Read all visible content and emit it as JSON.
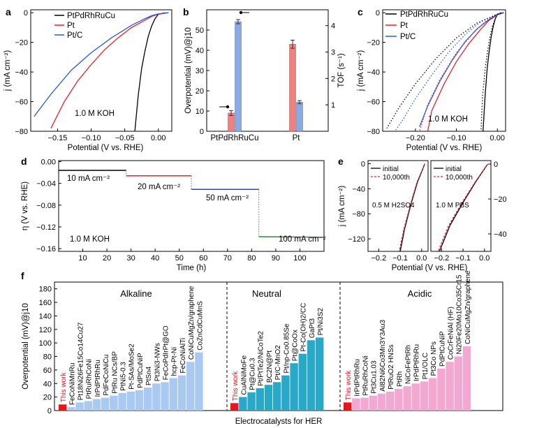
{
  "chart_data": [
    {
      "id": "a",
      "panel_label": "a",
      "type": "line",
      "xlabel": "Potential (V vs. RHE)",
      "ylabel": "j (mA cm⁻²)",
      "xlim": [
        -0.19,
        0.02
      ],
      "ylim": [
        -80,
        2
      ],
      "xticks": [
        "−0.15",
        "−0.10",
        "−0.05",
        "0.00"
      ],
      "yticks": [
        "−80",
        "−60",
        "−40",
        "−20",
        "0"
      ],
      "annotation": "1.0 M KOH",
      "series": [
        {
          "name": "PtPdRhRuCu",
          "color": "#000000",
          "x": [
            0.01,
            0.0,
            -0.005,
            -0.01,
            -0.015,
            -0.02,
            -0.025,
            -0.03,
            -0.035
          ],
          "y": [
            0,
            -1,
            -4,
            -9,
            -16,
            -26,
            -38,
            -56,
            -80
          ]
        },
        {
          "name": "Pt",
          "color": "#e8202a",
          "x": [
            0.015,
            0.0,
            -0.01,
            -0.02,
            -0.04,
            -0.06,
            -0.08,
            -0.1,
            -0.12,
            -0.14,
            -0.16
          ],
          "y": [
            0,
            -1,
            -2.5,
            -5,
            -10,
            -17,
            -25,
            -35,
            -46,
            -60,
            -78
          ]
        },
        {
          "name": "Pt/C",
          "color": "#2b59d6",
          "x": [
            0.015,
            0.0,
            -0.01,
            -0.02,
            -0.04,
            -0.07,
            -0.1,
            -0.13,
            -0.16,
            -0.185
          ],
          "y": [
            0,
            -0.8,
            -2,
            -4,
            -8.5,
            -17,
            -27,
            -39,
            -55,
            -70
          ]
        }
      ]
    },
    {
      "id": "b",
      "panel_label": "b",
      "type": "bar",
      "categories": [
        "PtPdRhRuCu",
        "Pt"
      ],
      "ylabel": "Overpotential (mV)@j10",
      "y2label": "TOF (s⁻¹)",
      "ylim": [
        0,
        60
      ],
      "y2lim": [
        0,
        4.6
      ],
      "yticks": [
        "0",
        "10",
        "20",
        "30",
        "40",
        "50"
      ],
      "y2ticks": [
        "1",
        "2",
        "3",
        "4"
      ],
      "series": [
        {
          "name": "Overpotential",
          "axis": "left",
          "color": "#f08080",
          "values": [
            9,
            43
          ],
          "errors": [
            1.2,
            2
          ]
        },
        {
          "name": "TOF",
          "axis": "right",
          "color": "#8aaae6",
          "values": [
            4.15,
            1.1
          ],
          "errors": [
            0.08,
            0.06
          ]
        }
      ]
    },
    {
      "id": "c",
      "panel_label": "c",
      "type": "line",
      "xlabel": "Potential (V vs. RHE)",
      "ylabel": "j (mA cm⁻²)",
      "xlim": [
        -0.28,
        0.02
      ],
      "ylim": [
        -80,
        2
      ],
      "xticks": [
        "−0.20",
        "−0.10",
        "0.00"
      ],
      "yticks": [
        "−80",
        "−60",
        "−40",
        "−20",
        "0"
      ],
      "annotation": "1.0 M KOH",
      "series": [
        {
          "name": "PtPdRhRuCu",
          "color": "#000000",
          "style": "solid",
          "x": [
            0.01,
            0.0,
            -0.005,
            -0.01,
            -0.015,
            -0.02,
            -0.025,
            -0.03,
            -0.035
          ],
          "y": [
            0,
            -1,
            -4,
            -9,
            -16,
            -26,
            -38,
            -56,
            -80
          ]
        },
        {
          "name": "PtPdRhRuCu (dotted)",
          "color": "#000000",
          "style": "dotted",
          "legend": false,
          "x": [
            0.01,
            0.0,
            -0.005,
            -0.012,
            -0.018,
            -0.024,
            -0.03,
            -0.036,
            -0.04
          ],
          "y": [
            0,
            -1,
            -4,
            -9,
            -16,
            -26,
            -38,
            -56,
            -80
          ]
        },
        {
          "name": "Pt",
          "color": "#e8202a",
          "style": "solid",
          "x": [
            0.015,
            0.0,
            -0.02,
            -0.04,
            -0.07,
            -0.1,
            -0.13,
            -0.16,
            -0.17
          ],
          "y": [
            0,
            -1.5,
            -5,
            -11,
            -21,
            -33,
            -48,
            -66,
            -80
          ]
        },
        {
          "name": "Pt (dotted)",
          "color": "#e8202a",
          "style": "dotted",
          "legend": false,
          "x": [
            0.015,
            0.0,
            -0.03,
            -0.06,
            -0.1,
            -0.14,
            -0.17,
            -0.19
          ],
          "y": [
            0,
            -1.5,
            -6,
            -14,
            -27,
            -45,
            -62,
            -80
          ]
        },
        {
          "name": "Pt/C",
          "color": "#2b59d6",
          "style": "solid",
          "x": [
            0.015,
            0.0,
            -0.02,
            -0.05,
            -0.08,
            -0.11,
            -0.14,
            -0.17,
            -0.19
          ],
          "y": [
            0,
            -1,
            -4.5,
            -11,
            -20,
            -32,
            -46,
            -63,
            -77
          ]
        },
        {
          "name": "Pt/C (dotted)",
          "color": "#2b59d6",
          "style": "dotted",
          "legend": false,
          "x": [
            0.015,
            0.0,
            -0.04,
            -0.08,
            -0.12,
            -0.16,
            -0.2,
            -0.23,
            -0.25
          ],
          "y": [
            0,
            -1,
            -6,
            -15,
            -27,
            -42,
            -58,
            -72,
            -80
          ]
        },
        {
          "name": "Pt/C (dotted 2)",
          "color": "#000000",
          "style": "dotted",
          "legend": false,
          "x": [
            0.015,
            0.0,
            -0.05,
            -0.1,
            -0.15,
            -0.2,
            -0.24,
            -0.27
          ],
          "y": [
            0,
            -1,
            -7,
            -17,
            -31,
            -48,
            -64,
            -78
          ]
        }
      ]
    },
    {
      "id": "d",
      "panel_label": "d",
      "type": "line",
      "xlabel": "Time (h)",
      "ylabel": "η (V vs. RHE)",
      "xlim": [
        0,
        110
      ],
      "ylim": [
        -0.165,
        0.002
      ],
      "xticks": [
        "10",
        "20",
        "30",
        "40",
        "50",
        "60",
        "70",
        "80",
        "90",
        "100"
      ],
      "yticks": [
        "0.00",
        "−0.04",
        "−0.08",
        "−0.12",
        "−0.16"
      ],
      "annotation": "1.0 M KOH",
      "series": [
        {
          "name": "10 mA cm⁻²",
          "color": "#000000",
          "x": [
            0,
            28
          ],
          "y": [
            -0.016,
            -0.016
          ]
        },
        {
          "name": "20 mA cm⁻²",
          "color": "#e8202a",
          "x": [
            28,
            55
          ],
          "y": [
            -0.026,
            -0.026
          ]
        },
        {
          "name": "50 mA cm⁻²",
          "color": "#2b3fd6",
          "x": [
            55,
            83
          ],
          "y": [
            -0.051,
            -0.051
          ]
        },
        {
          "name": "100 mA cm⁻²",
          "color": "#2e8b2e",
          "x": [
            83,
            110
          ],
          "y": [
            -0.138,
            -0.139
          ]
        }
      ]
    },
    {
      "id": "e",
      "panel_label": "e",
      "type": "line",
      "xlabel": "Potential (V vs. RHE)",
      "ylabel": "j (mA cm⁻²)",
      "left_ylim": [
        -140,
        5
      ],
      "right_ylim": [
        -50,
        2
      ],
      "left_yticks": [
        "−120",
        "−80",
        "−40",
        "0"
      ],
      "right_yticks": [
        "−40",
        "−20",
        "0"
      ],
      "xticks": [
        "−0.2",
        "−0.1",
        "0.0",
        "−0.2",
        "−0.1",
        "0.0"
      ],
      "electrolytes": [
        "0.5 M H2SO4",
        "1.0 M PBS"
      ],
      "legend": [
        "initial",
        "10,000th"
      ],
      "series": [
        {
          "name": "initial (H2SO4)",
          "color": "#000000",
          "x": [
            0.015,
            -0.02,
            -0.05,
            -0.08,
            -0.1
          ],
          "y": [
            0,
            -30,
            -65,
            -105,
            -140
          ]
        },
        {
          "name": "10,000th (H2SO4)",
          "color": "#e8202a",
          "x": [
            0.015,
            -0.022,
            -0.052,
            -0.083,
            -0.104
          ],
          "y": [
            0,
            -30,
            -65,
            -105,
            -140
          ]
        },
        {
          "name": "initial (PBS)",
          "color": "#000000",
          "x": [
            0.015,
            -0.04,
            -0.1,
            -0.16,
            -0.21
          ],
          "y": [
            0,
            -10,
            -22,
            -35,
            -50
          ]
        },
        {
          "name": "10,000th (PBS)",
          "color": "#e8202a",
          "x": [
            0.015,
            -0.042,
            -0.104,
            -0.166,
            -0.216
          ],
          "y": [
            0,
            -10,
            -22,
            -35,
            -50
          ]
        }
      ]
    },
    {
      "id": "f",
      "panel_label": "f",
      "type": "bar",
      "xlabel": "Electrocatalysts for HER",
      "ylabel": "Overpotential (mV)@j10",
      "ylim": [
        0,
        190
      ],
      "yticks": [
        "0",
        "20",
        "40",
        "60",
        "80",
        "100",
        "120",
        "140",
        "160",
        "180"
      ],
      "groups": [
        {
          "name": "Alkaline",
          "color": "#a9c9f0",
          "categories": [
            "This work",
            "FeCoNiMnRu",
            "Pt18Ni26Fe15Co14Cu27",
            "PtRuRhCoNi",
            "IrPdPtRhRu",
            "PdFeCoNiCu",
            "PtRu NCs/BP",
            "PtNi5-0.3",
            "Pt-SAs/MoSe2",
            "PdPtCuNiP",
            "PtSn4",
            "Pt3Ni3-NWs",
            "FeCoPdIrPt@GO",
            "hcp-Pt-Ni",
            "FeCoNiAlTi",
            "CoNiCuMgZn/graphene",
            "CoZnCdCuMnS"
          ],
          "values": [
            9,
            5,
            12,
            14,
            17,
            19,
            22,
            26,
            28,
            30,
            34,
            40,
            42,
            48,
            52,
            72,
            86
          ]
        },
        {
          "name": "Neutral",
          "color": "#29a8c8",
          "categories": [
            "This work",
            "CuAlNiMoFe",
            "Pt@Cu0.3",
            "Pt/PtTe2/NiCoTe2",
            "BC2N@Pt",
            "Pt/C-MnO2",
            "Pt/np-Co0.85Se",
            "Pt@CoOx",
            "Pt-Co(OH)2/CC",
            "GaPt3",
            "Pt/Ni3S2"
          ],
          "values": [
            11,
            20,
            27,
            33,
            38,
            42,
            52,
            70,
            84,
            104,
            108
          ]
        },
        {
          "name": "Acidic",
          "color": "#f2a8d0",
          "categories": [
            "This work",
            "IrPdPtRhRu",
            "PtRuRhCoNi",
            "Pt3Cu1.03",
            "Al82Ni6Co3Mn3Y3Au3",
            "PtRuO2 HNSs",
            "PtRh",
            "NiCoFePtRh",
            "IrPdPtRhRu",
            "Pt1/OLC",
            "Pt3Co NPs",
            "PdPtCuNiP",
            "CoCrFeNiAl (HF)",
            "Ni20Fe20Mo10Co35Cr15",
            "CoNiCuMgZn/graphene"
          ],
          "values": [
            12,
            18,
            19,
            22,
            25,
            28,
            32,
            36,
            40,
            43,
            48,
            62,
            72,
            80,
            95
          ]
        }
      ],
      "highlight_color": "#e8151b"
    }
  ]
}
